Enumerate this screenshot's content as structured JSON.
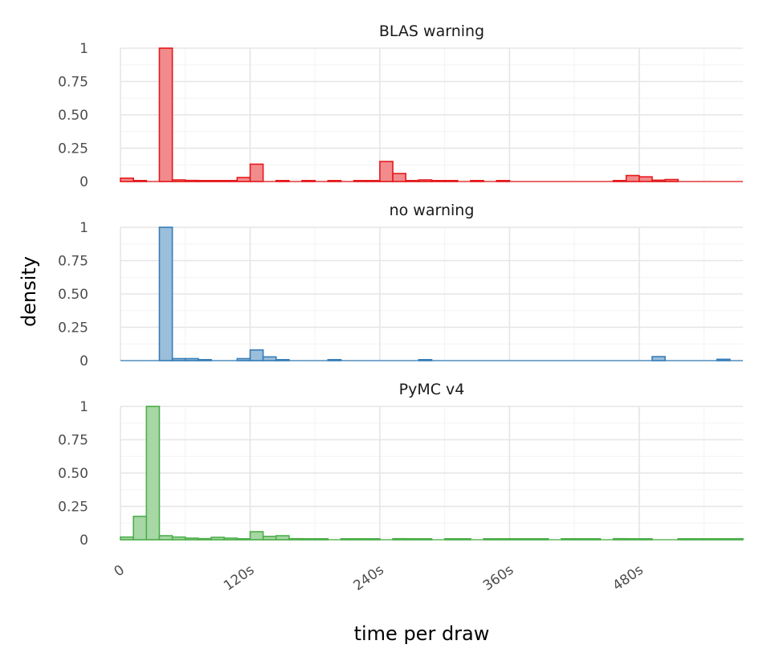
{
  "chart_data": {
    "type": "bar",
    "subtype": "faceted-histogram",
    "xlabel": "time per draw",
    "ylabel": "density",
    "x_unit": "seconds",
    "xlim": [
      0,
      576
    ],
    "ylim": [
      0,
      1
    ],
    "bin_width": 12,
    "x_ticks": [
      {
        "value": 0,
        "label": "0"
      },
      {
        "value": 120,
        "label": "120s"
      },
      {
        "value": 240,
        "label": "240s"
      },
      {
        "value": 360,
        "label": "360s"
      },
      {
        "value": 480,
        "label": "480s"
      }
    ],
    "y_ticks": [
      {
        "value": 0,
        "label": "0"
      },
      {
        "value": 0.25,
        "label": "0.25"
      },
      {
        "value": 0.5,
        "label": "0.50"
      },
      {
        "value": 0.75,
        "label": "0.75"
      },
      {
        "value": 1,
        "label": "1"
      }
    ],
    "grid": true,
    "legend": "none",
    "series": [
      {
        "name": "BLAS warning",
        "color": "#e41a1c",
        "fill": "#f28b8c",
        "bins": [
          {
            "x": 0,
            "y": 0.025
          },
          {
            "x": 12,
            "y": 0.005
          },
          {
            "x": 36,
            "y": 1.0
          },
          {
            "x": 48,
            "y": 0.012
          },
          {
            "x": 60,
            "y": 0.008
          },
          {
            "x": 72,
            "y": 0.006
          },
          {
            "x": 84,
            "y": 0.003
          },
          {
            "x": 96,
            "y": 0.003
          },
          {
            "x": 108,
            "y": 0.03
          },
          {
            "x": 120,
            "y": 0.13
          },
          {
            "x": 144,
            "y": 0.003
          },
          {
            "x": 168,
            "y": 0.003
          },
          {
            "x": 192,
            "y": 0.003
          },
          {
            "x": 216,
            "y": 0.003
          },
          {
            "x": 228,
            "y": 0.003
          },
          {
            "x": 240,
            "y": 0.15
          },
          {
            "x": 252,
            "y": 0.06
          },
          {
            "x": 264,
            "y": 0.003
          },
          {
            "x": 276,
            "y": 0.012
          },
          {
            "x": 288,
            "y": 0.005
          },
          {
            "x": 300,
            "y": 0.004
          },
          {
            "x": 324,
            "y": 0.004
          },
          {
            "x": 348,
            "y": 0.003
          },
          {
            "x": 456,
            "y": 0.003
          },
          {
            "x": 468,
            "y": 0.045
          },
          {
            "x": 480,
            "y": 0.035
          },
          {
            "x": 492,
            "y": 0.01
          },
          {
            "x": 504,
            "y": 0.015
          }
        ]
      },
      {
        "name": "no warning",
        "color": "#377eb8",
        "fill": "#9bbedb",
        "bins": [
          {
            "x": 36,
            "y": 1.0
          },
          {
            "x": 48,
            "y": 0.015
          },
          {
            "x": 60,
            "y": 0.015
          },
          {
            "x": 72,
            "y": 0.004
          },
          {
            "x": 108,
            "y": 0.015
          },
          {
            "x": 120,
            "y": 0.08
          },
          {
            "x": 132,
            "y": 0.028
          },
          {
            "x": 144,
            "y": 0.005
          },
          {
            "x": 192,
            "y": 0.004
          },
          {
            "x": 276,
            "y": 0.004
          },
          {
            "x": 492,
            "y": 0.03
          },
          {
            "x": 552,
            "y": 0.01
          }
        ]
      },
      {
        "name": "PyMC v4",
        "color": "#4daf4a",
        "fill": "#a6d7a4",
        "bins": [
          {
            "x": 0,
            "y": 0.02
          },
          {
            "x": 12,
            "y": 0.175
          },
          {
            "x": 24,
            "y": 1.0
          },
          {
            "x": 36,
            "y": 0.03
          },
          {
            "x": 48,
            "y": 0.02
          },
          {
            "x": 60,
            "y": 0.012
          },
          {
            "x": 72,
            "y": 0.008
          },
          {
            "x": 84,
            "y": 0.018
          },
          {
            "x": 96,
            "y": 0.012
          },
          {
            "x": 108,
            "y": 0.005
          },
          {
            "x": 120,
            "y": 0.06
          },
          {
            "x": 132,
            "y": 0.025
          },
          {
            "x": 144,
            "y": 0.03
          },
          {
            "x": 156,
            "y": 0.008
          },
          {
            "x": 168,
            "y": 0.004
          },
          {
            "x": 180,
            "y": 0.003
          },
          {
            "x": 204,
            "y": 0.003
          },
          {
            "x": 216,
            "y": 0.003
          },
          {
            "x": 228,
            "y": 0.003
          },
          {
            "x": 252,
            "y": 0.008
          },
          {
            "x": 264,
            "y": 0.003
          },
          {
            "x": 276,
            "y": 0.003
          },
          {
            "x": 300,
            "y": 0.003
          },
          {
            "x": 312,
            "y": 0.003
          },
          {
            "x": 336,
            "y": 0.003
          },
          {
            "x": 348,
            "y": 0.003
          },
          {
            "x": 360,
            "y": 0.003
          },
          {
            "x": 372,
            "y": 0.003
          },
          {
            "x": 384,
            "y": 0.003
          },
          {
            "x": 408,
            "y": 0.003
          },
          {
            "x": 420,
            "y": 0.003
          },
          {
            "x": 432,
            "y": 0.003
          },
          {
            "x": 456,
            "y": 0.008
          },
          {
            "x": 468,
            "y": 0.004
          },
          {
            "x": 480,
            "y": 0.004
          },
          {
            "x": 516,
            "y": 0.005
          },
          {
            "x": 528,
            "y": 0.003
          },
          {
            "x": 540,
            "y": 0.003
          },
          {
            "x": 552,
            "y": 0.003
          },
          {
            "x": 564,
            "y": 0.004
          }
        ]
      }
    ]
  }
}
